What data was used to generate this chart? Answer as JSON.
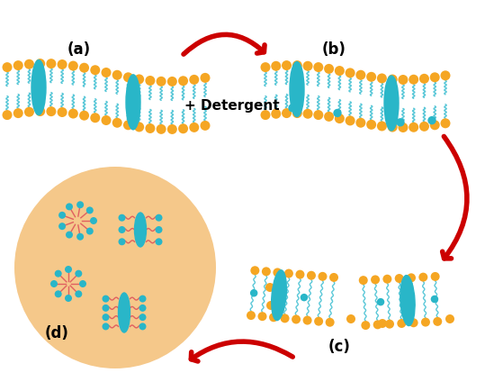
{
  "bg": "#ffffff",
  "head_orange": "#F5A623",
  "tail_blue": "#5BC8D8",
  "tail_red": "#E06060",
  "protein_teal": "#29B6C8",
  "det_head_teal": "#29B6C8",
  "arrow_red": "#CC0000",
  "circle_bg": "#F5C88A",
  "black": "#000000",
  "label_a": "(a)",
  "label_b": "(b)",
  "label_c": "(c)",
  "label_d": "(d)",
  "det_text": "+ Detergent",
  "fontsize": 12
}
